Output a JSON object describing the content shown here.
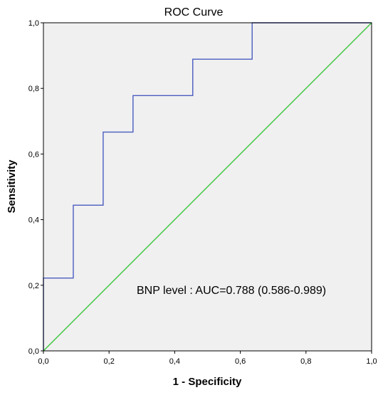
{
  "chart_data": {
    "type": "line",
    "title": "ROC Curve",
    "xlabel": "1 - Specificity",
    "ylabel": "Sensitivity",
    "xlim": [
      0,
      1
    ],
    "ylim": [
      0,
      1
    ],
    "x_ticks": [
      "0,0",
      "0,2",
      "0,4",
      "0,6",
      "0,8",
      "1,0"
    ],
    "y_ticks": [
      "0,0",
      "0,2",
      "0,4",
      "0,6",
      "0,8",
      "1,0"
    ],
    "grid": false,
    "legend": "none",
    "series": [
      {
        "color": "#4a5cc0",
        "x": [
          0,
          0,
          0.091,
          0.091,
          0.182,
          0.182,
          0.273,
          0.273,
          0.455,
          0.455,
          0.636,
          0.636,
          1.0
        ],
        "y": [
          0,
          0.222,
          0.222,
          0.444,
          0.444,
          0.667,
          0.667,
          0.778,
          0.778,
          0.889,
          0.889,
          1.0,
          1.0
        ]
      },
      {
        "color": "#3cc63c",
        "x": [
          0,
          1
        ],
        "y": [
          0,
          1
        ]
      }
    ],
    "annotation": "BNP level : AUC=0.788 (0.586-0.989)"
  },
  "colors": {
    "plot_background": "#f0f0f0",
    "frame": "#000000"
  }
}
